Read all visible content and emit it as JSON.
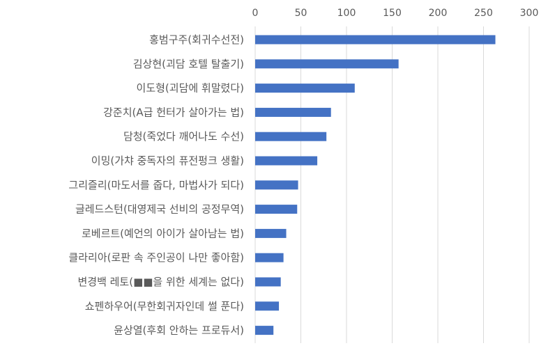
{
  "chart_data": {
    "type": "bar",
    "orientation": "horizontal",
    "title": "",
    "xlabel": "",
    "ylabel": "",
    "xlim": [
      0,
      300
    ],
    "ticks": [
      0,
      50,
      100,
      150,
      200,
      250,
      300
    ],
    "x_axis_position": "top",
    "grid": true,
    "legend": "none",
    "bar_color": "#4472C4",
    "grid_color": "#D9D9D9",
    "categories": [
      "홍범구주(회귀수선전)",
      "김상현(괴담 호텔 탈출기)",
      "이도형(괴담에 휘말렸다)",
      "강준치(A급 헌터가 살아가는 법)",
      "담청(죽었다 깨어나도 수선)",
      "이밍(가챠 중독자의 퓨전펑크 생활)",
      "그리즐리(마도서를 줍다, 마법사가 되다)",
      "글레드스턴(대영제국 선비의 공정무역)",
      "로베르트(예언의 아이가 살아남는 법)",
      "클라리아(로판 속 주인공이 나만 좋아함)",
      "변경백 레토(■■을 위한 세계는 없다)",
      "쇼펜하우어(무한회귀자인데 썰 푼다)",
      "윤상열(후회 안하는 프로듀서)"
    ],
    "values": [
      263,
      157,
      109,
      83,
      78,
      68,
      47,
      46,
      34,
      31,
      28,
      26,
      20
    ]
  }
}
